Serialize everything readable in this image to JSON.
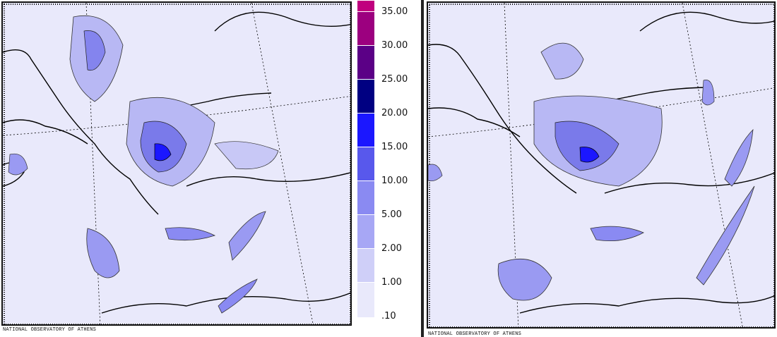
{
  "credits": {
    "left": "NATIONAL OBSERVATORY OF ATHENS",
    "right": "NATIONAL OBSERVATORY OF ATHENS"
  },
  "legend": {
    "levels": [
      {
        "label": "35.00",
        "color": "#c0007e"
      },
      {
        "label": "30.00",
        "color": "#9c007f"
      },
      {
        "label": "25.00",
        "color": "#5b0086"
      },
      {
        "label": "20.00",
        "color": "#000082"
      },
      {
        "label": "15.00",
        "color": "#1b17ff"
      },
      {
        "label": "10.00",
        "color": "#5858ec"
      },
      {
        "label": "5.00",
        "color": "#8a8af2"
      },
      {
        "label": "2.00",
        "color": "#a7a7f5"
      },
      {
        "label": "1.00",
        "color": "#cfcff8"
      },
      {
        "label": ".10",
        "color": "#e9e9fb"
      }
    ]
  },
  "colors": {
    "background": "#e9e9fb",
    "coast": "#000000",
    "grid": "#000000"
  }
}
